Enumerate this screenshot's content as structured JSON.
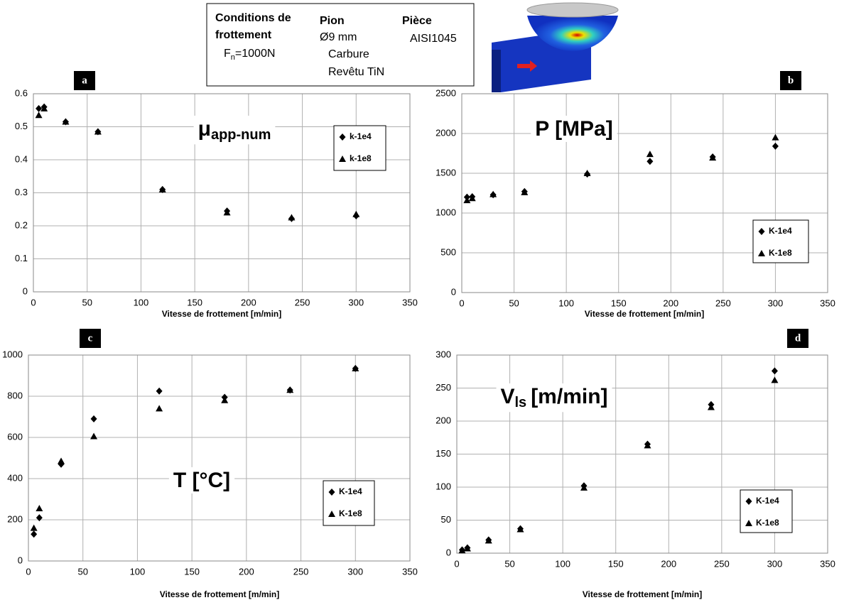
{
  "info_box": {
    "conditions": [
      "Conditions de",
      "frottement"
    ],
    "load_symbol": "F",
    "load_sub": "n",
    "load_value": "=1000N",
    "pin_title": "Pion",
    "pin_lines": [
      "Ø9 mm",
      "Carbure",
      "Revêtu TiN"
    ],
    "part_title": "Pièce",
    "part_lines": [
      "AISI1045"
    ]
  },
  "chart_data": [
    {
      "type": "scatter",
      "tag": "a",
      "title": "μ",
      "title_sub": "app-num",
      "x_label": "Vitesse de frottement [m/min]",
      "x": [
        5,
        10,
        30,
        60,
        120,
        180,
        240,
        300
      ],
      "series": [
        {
          "name": "k-1e4",
          "marker": "diamond",
          "color": "#000000",
          "values": [
            0.555,
            0.56,
            0.515,
            0.485,
            0.31,
            0.245,
            0.222,
            0.23
          ]
        },
        {
          "name": "k-1e8",
          "marker": "triangle",
          "color": "#000000",
          "values": [
            0.535,
            0.555,
            0.515,
            0.485,
            0.31,
            0.24,
            0.225,
            0.235
          ]
        }
      ],
      "xlim": [
        0,
        350
      ],
      "xticks": [
        0,
        50,
        100,
        150,
        200,
        250,
        300,
        350
      ],
      "ylim": [
        0,
        0.6
      ],
      "yticks": [
        0,
        0.1,
        0.2,
        0.3,
        0.4,
        0.5,
        0.6
      ],
      "grid": true
    },
    {
      "type": "scatter",
      "tag": "b",
      "title": "P [MPa]",
      "x_label": "Vitesse de frottement [m/min]",
      "x": [
        5,
        10,
        30,
        60,
        120,
        180,
        240,
        300
      ],
      "series": [
        {
          "name": "K-1e4",
          "marker": "diamond",
          "color": "#000000",
          "values": [
            1200,
            1205,
            1230,
            1270,
            1490,
            1650,
            1705,
            1840
          ]
        },
        {
          "name": "K-1e8",
          "marker": "triangle",
          "color": "#000000",
          "values": [
            1160,
            1185,
            1235,
            1260,
            1500,
            1740,
            1695,
            1950
          ]
        }
      ],
      "xlim": [
        0,
        350
      ],
      "xticks": [
        0,
        50,
        100,
        150,
        200,
        250,
        300,
        350
      ],
      "ylim": [
        0,
        2500
      ],
      "yticks": [
        0,
        500,
        1000,
        1500,
        2000,
        2500
      ],
      "grid": true
    },
    {
      "type": "scatter",
      "tag": "c",
      "title": "T [°C]",
      "x_label": "Vitesse de frottement [m/min]",
      "x": [
        5,
        10,
        30,
        60,
        120,
        180,
        240,
        300
      ],
      "series": [
        {
          "name": "K-1e4",
          "marker": "diamond",
          "color": "#000000",
          "values": [
            130,
            210,
            470,
            690,
            825,
            795,
            830,
            935
          ]
        },
        {
          "name": "K-1e8",
          "marker": "triangle",
          "color": "#000000",
          "values": [
            160,
            255,
            485,
            605,
            740,
            780,
            830,
            935
          ]
        }
      ],
      "xlim": [
        0,
        350
      ],
      "xticks": [
        0,
        50,
        100,
        150,
        200,
        250,
        300,
        350
      ],
      "ylim": [
        0,
        1000
      ],
      "yticks": [
        0,
        200,
        400,
        600,
        800,
        1000
      ],
      "grid": true
    },
    {
      "type": "scatter",
      "tag": "d",
      "title": "V",
      "title_sub": "ls",
      "title_after": "[m/min]",
      "x_label": "Vitesse de frottement [m/min]",
      "x": [
        5,
        10,
        30,
        60,
        120,
        180,
        240,
        300
      ],
      "series": [
        {
          "name": "K-1e4",
          "marker": "diamond",
          "color": "#000000",
          "values": [
            5,
            8,
            20,
            37,
            102,
            165,
            225,
            276
          ]
        },
        {
          "name": "K-1e8",
          "marker": "triangle",
          "color": "#000000",
          "values": [
            4,
            7,
            19,
            36,
            99,
            163,
            221,
            262
          ]
        }
      ],
      "xlim": [
        0,
        350
      ],
      "xticks": [
        0,
        50,
        100,
        150,
        200,
        250,
        300,
        350
      ],
      "ylim": [
        0,
        300
      ],
      "yticks": [
        0,
        50,
        100,
        150,
        200,
        250,
        300
      ],
      "grid": true
    }
  ]
}
